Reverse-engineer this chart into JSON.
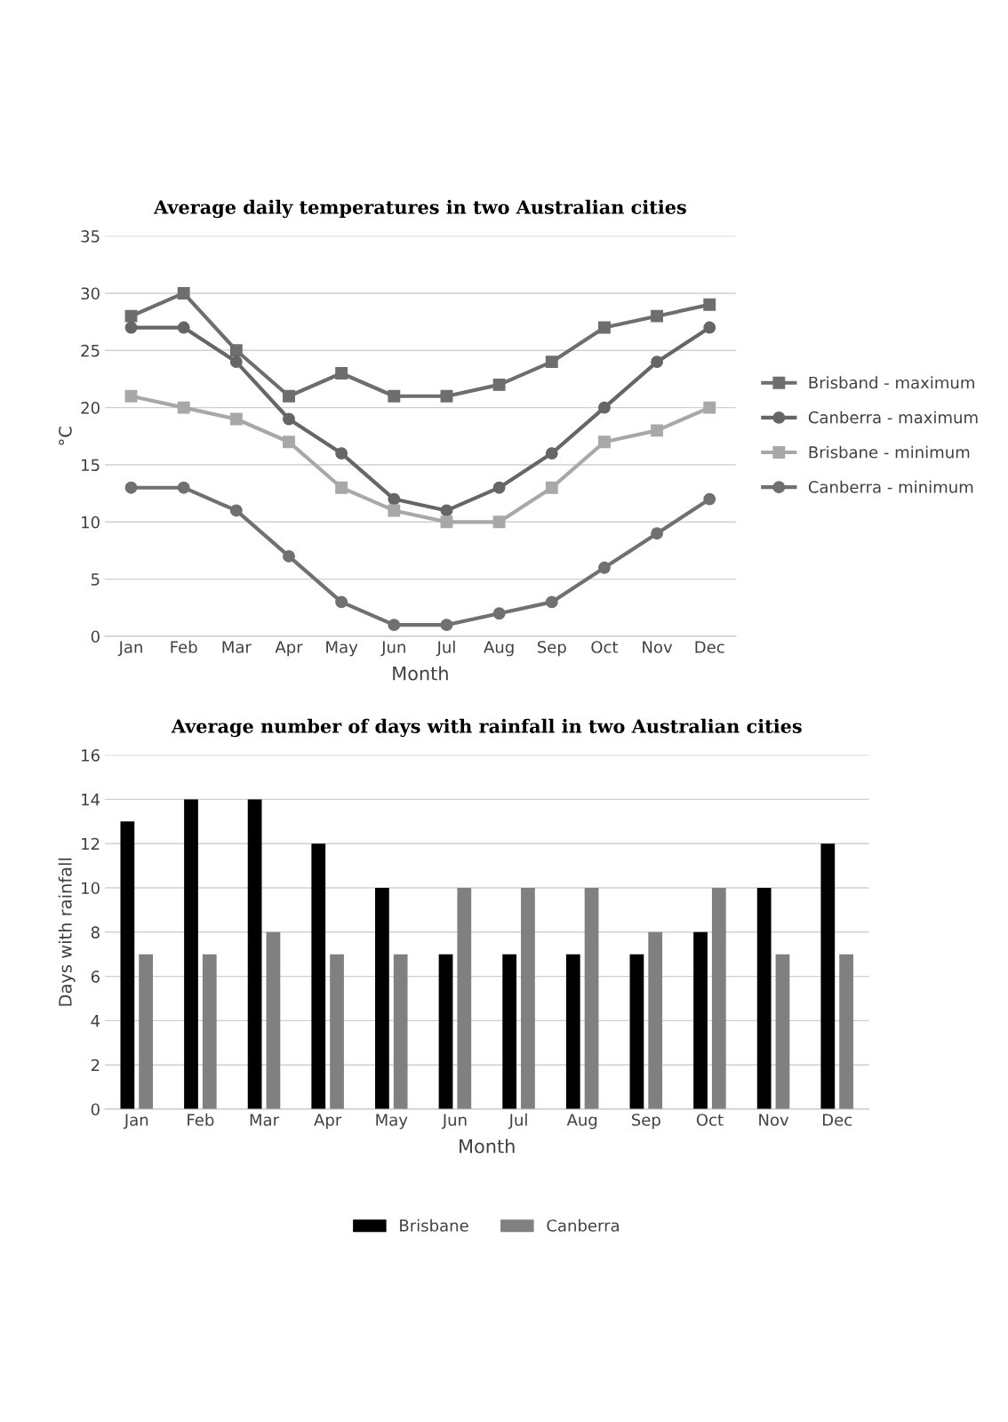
{
  "chart_data": [
    {
      "type": "line",
      "title": "Average daily temperatures in two Australian cities",
      "xlabel": "Month",
      "ylabel": "°C",
      "categories": [
        "Jan",
        "Feb",
        "Mar",
        "Apr",
        "May",
        "Jun",
        "Jul",
        "Aug",
        "Sep",
        "Oct",
        "Nov",
        "Dec"
      ],
      "series": [
        {
          "name": "Brisband - maximum",
          "color": "#6e6e6e",
          "marker": "square",
          "values": [
            28,
            30,
            25,
            21,
            23,
            21,
            21,
            22,
            24,
            27,
            28,
            29
          ]
        },
        {
          "name": "Canberra - maximum",
          "color": "#666666",
          "marker": "circle",
          "values": [
            27,
            27,
            24,
            19,
            16,
            12,
            11,
            13,
            16,
            20,
            24,
            27
          ]
        },
        {
          "name": "Brisbane - minimum",
          "color": "#a8a8a8",
          "marker": "square",
          "values": [
            21,
            20,
            19,
            17,
            13,
            11,
            10,
            10,
            13,
            17,
            18,
            20
          ]
        },
        {
          "name": "Canberra - minimum",
          "color": "#707070",
          "marker": "circle",
          "values": [
            13,
            13,
            11,
            7,
            3,
            1,
            1,
            2,
            3,
            6,
            9,
            12
          ]
        }
      ],
      "ylim": [
        0,
        35
      ],
      "yticks": [
        0,
        5,
        10,
        15,
        20,
        25,
        30,
        35
      ],
      "grid": "y",
      "legend": "right",
      "line_style": "solid"
    },
    {
      "type": "bar",
      "title": "Average number of days with rainfall in two Australian cities",
      "xlabel": "Month",
      "ylabel": "Days with rainfall",
      "categories": [
        "Jan",
        "Feb",
        "Mar",
        "Apr",
        "May",
        "Jun",
        "Jul",
        "Aug",
        "Sep",
        "Oct",
        "Nov",
        "Dec"
      ],
      "series": [
        {
          "name": "Brisbane",
          "color": "#000000",
          "values": [
            13,
            14,
            14,
            12,
            10,
            7,
            7,
            7,
            7,
            8,
            10,
            12
          ]
        },
        {
          "name": "Canberra",
          "color": "#808080",
          "values": [
            7,
            7,
            8,
            7,
            7,
            10,
            10,
            10,
            8,
            10,
            7,
            7
          ]
        }
      ],
      "ylim": [
        0,
        16
      ],
      "yticks": [
        0,
        2,
        4,
        6,
        8,
        10,
        12,
        14,
        16
      ],
      "grid": "y",
      "legend": "bottom"
    }
  ]
}
